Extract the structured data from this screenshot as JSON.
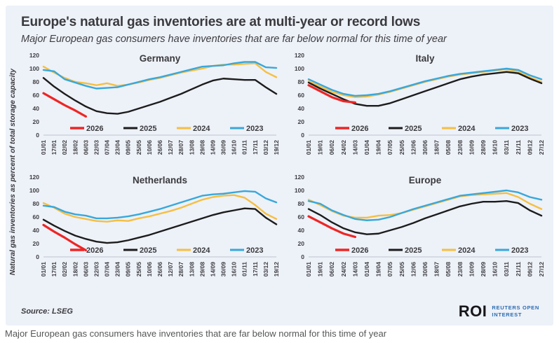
{
  "header": {
    "title": "Europe's natural gas inventories are at multi-year or record lows",
    "subtitle": "Major European gas consumers have inventories that are far below normal for this time of year",
    "y_axis_label": "Natural gas inventories as percent of total storage capacity"
  },
  "footer": {
    "source_label": "Source:",
    "source_value": "LSEG",
    "caption": "Major European gas consumers have inventories that are far below normal for this time of year",
    "logo": {
      "mark": "ROI",
      "line1": "REUTERS OPEN",
      "line2": "INTEREST"
    }
  },
  "colors": {
    "red_2026": "#ee2524",
    "black_2025": "#1c1c1c",
    "yellow_2024": "#f5bf42",
    "blue_2023": "#38a8da",
    "card_bg": "#edf1f8",
    "axis_line": "#c9cdd6",
    "logo_blue": "#2a6db2",
    "logo_dark": "#17171b"
  },
  "chart_data": [
    {
      "type": "line",
      "title": "Germany",
      "ylabel": "Natural gas inventories as percent of total storage capacity",
      "ylim": [
        0,
        120
      ],
      "yticks": [
        0,
        20,
        40,
        60,
        80,
        100,
        120
      ],
      "grid": false,
      "legend_position": "bottom-inside",
      "categories": [
        "01/01",
        "17/01",
        "02/02",
        "18/02",
        "06/03",
        "22/03",
        "07/04",
        "23/04",
        "09/05",
        "25/05",
        "10/06",
        "26/06",
        "12/07",
        "28/07",
        "13/08",
        "29/08",
        "14/09",
        "30/09",
        "16/10",
        "01/11",
        "17/11",
        "03/12",
        "19/12"
      ],
      "series": [
        {
          "name": "2026",
          "color": "#ee2524",
          "values": [
            63,
            54,
            45,
            37,
            28,
            null,
            null,
            null,
            null,
            null,
            null,
            null,
            null,
            null,
            null,
            null,
            null,
            null,
            null,
            null,
            null,
            null,
            null
          ]
        },
        {
          "name": "2025",
          "color": "#1c1c1c",
          "values": [
            86,
            73,
            62,
            52,
            43,
            36,
            33,
            32,
            35,
            40,
            45,
            50,
            56,
            62,
            69,
            76,
            82,
            85,
            84,
            83,
            83,
            72,
            62
          ]
        },
        {
          "name": "2024",
          "color": "#f5bf42",
          "values": [
            103,
            94,
            86,
            80,
            78,
            75,
            78,
            74,
            76,
            79,
            83,
            86,
            90,
            94,
            97,
            100,
            104,
            106,
            106,
            107,
            108,
            95,
            87
          ]
        },
        {
          "name": "2023",
          "color": "#38a8da",
          "values": [
            98,
            96,
            84,
            79,
            74,
            70,
            71,
            72,
            76,
            80,
            84,
            87,
            91,
            95,
            99,
            103,
            104,
            105,
            108,
            110,
            110,
            102,
            101
          ]
        }
      ]
    },
    {
      "type": "line",
      "title": "Italy",
      "ylabel": "Natural gas inventories as percent of total storage capacity",
      "ylim": [
        0,
        120
      ],
      "yticks": [
        0,
        20,
        40,
        60,
        80,
        100,
        120
      ],
      "grid": false,
      "legend_position": "bottom-inside",
      "categories": [
        "01/01",
        "19/01",
        "06/02",
        "24/02",
        "14/03",
        "01/04",
        "19/04",
        "07/05",
        "25/05",
        "12/06",
        "30/06",
        "18/07",
        "05/08",
        "23/08",
        "10/09",
        "28/09",
        "16/10",
        "03/11",
        "21/11",
        "09/12",
        "27/12"
      ],
      "series": [
        {
          "name": "2026",
          "color": "#ee2524",
          "values": [
            75,
            66,
            57,
            51,
            49,
            null,
            null,
            null,
            null,
            null,
            null,
            null,
            null,
            null,
            null,
            null,
            null,
            null,
            null,
            null,
            null
          ]
        },
        {
          "name": "2025",
          "color": "#1c1c1c",
          "values": [
            79,
            70,
            62,
            54,
            47,
            44,
            44,
            48,
            54,
            60,
            66,
            72,
            78,
            84,
            88,
            91,
            93,
            95,
            93,
            85,
            78
          ]
        },
        {
          "name": "2024",
          "color": "#f5bf42",
          "values": [
            81,
            73,
            65,
            60,
            57,
            58,
            61,
            65,
            70,
            75,
            80,
            84,
            88,
            91,
            93,
            95,
            97,
            99,
            95,
            87,
            80
          ]
        },
        {
          "name": "2023",
          "color": "#38a8da",
          "values": [
            84,
            76,
            68,
            62,
            59,
            60,
            62,
            66,
            71,
            76,
            81,
            85,
            89,
            92,
            94,
            96,
            98,
            100,
            98,
            90,
            84
          ]
        }
      ]
    },
    {
      "type": "line",
      "title": "Netherlands",
      "ylabel": "Natural gas inventories as percent of total storage capacity",
      "ylim": [
        0,
        120
      ],
      "yticks": [
        0,
        20,
        40,
        60,
        80,
        100,
        120
      ],
      "grid": false,
      "legend_position": "bottom-inside",
      "categories": [
        "01/01",
        "17/01",
        "02/02",
        "18/02",
        "06/03",
        "22/03",
        "07/04",
        "23/04",
        "09/05",
        "25/05",
        "10/06",
        "26/06",
        "12/07",
        "28/07",
        "13/08",
        "29/08",
        "14/09",
        "30/09",
        "16/10",
        "01/11",
        "17/11",
        "03/12",
        "19/12"
      ],
      "series": [
        {
          "name": "2026",
          "color": "#ee2524",
          "values": [
            48,
            38,
            29,
            19,
            10,
            null,
            null,
            null,
            null,
            null,
            null,
            null,
            null,
            null,
            null,
            null,
            null,
            null,
            null,
            null,
            null,
            null,
            null
          ]
        },
        {
          "name": "2025",
          "color": "#1c1c1c",
          "values": [
            56,
            47,
            39,
            32,
            27,
            23,
            21,
            22,
            25,
            29,
            33,
            38,
            43,
            48,
            53,
            58,
            63,
            67,
            70,
            73,
            72,
            59,
            49
          ]
        },
        {
          "name": "2024",
          "color": "#f5bf42",
          "values": [
            81,
            74,
            65,
            60,
            57,
            54,
            53,
            55,
            54,
            58,
            61,
            65,
            69,
            74,
            80,
            86,
            90,
            92,
            93,
            89,
            78,
            65,
            57
          ]
        },
        {
          "name": "2023",
          "color": "#38a8da",
          "values": [
            77,
            75,
            68,
            64,
            62,
            58,
            58,
            59,
            61,
            64,
            68,
            72,
            77,
            82,
            87,
            92,
            94,
            95,
            97,
            99,
            98,
            88,
            82
          ]
        }
      ]
    },
    {
      "type": "line",
      "title": "Europe",
      "ylabel": "Natural gas inventories as percent of total storage capacity",
      "ylim": [
        0,
        120
      ],
      "yticks": [
        0,
        20,
        40,
        60,
        80,
        100,
        120
      ],
      "grid": false,
      "legend_position": "bottom-inside",
      "categories": [
        "01/01",
        "19/01",
        "06/02",
        "24/02",
        "14/03",
        "01/04",
        "19/04",
        "07/05",
        "25/05",
        "12/06",
        "30/06",
        "18/07",
        "05/08",
        "23/08",
        "10/09",
        "28/09",
        "16/10",
        "03/11",
        "21/11",
        "09/12",
        "27/12"
      ],
      "series": [
        {
          "name": "2026",
          "color": "#ee2524",
          "values": [
            61,
            52,
            43,
            35,
            30,
            null,
            null,
            null,
            null,
            null,
            null,
            null,
            null,
            null,
            null,
            null,
            null,
            null,
            null,
            null,
            null
          ]
        },
        {
          "name": "2025",
          "color": "#1c1c1c",
          "values": [
            72,
            63,
            52,
            43,
            37,
            34,
            35,
            40,
            45,
            51,
            58,
            64,
            70,
            76,
            80,
            83,
            83,
            84,
            81,
            70,
            62
          ]
        },
        {
          "name": "2024",
          "color": "#f5bf42",
          "values": [
            86,
            78,
            69,
            62,
            59,
            59,
            62,
            63,
            66,
            71,
            76,
            81,
            86,
            91,
            93,
            94,
            95,
            96,
            90,
            80,
            72
          ]
        },
        {
          "name": "2023",
          "color": "#38a8da",
          "values": [
            84,
            80,
            70,
            63,
            57,
            55,
            56,
            60,
            66,
            72,
            77,
            82,
            87,
            92,
            94,
            96,
            98,
            100,
            97,
            90,
            86
          ]
        }
      ]
    }
  ]
}
